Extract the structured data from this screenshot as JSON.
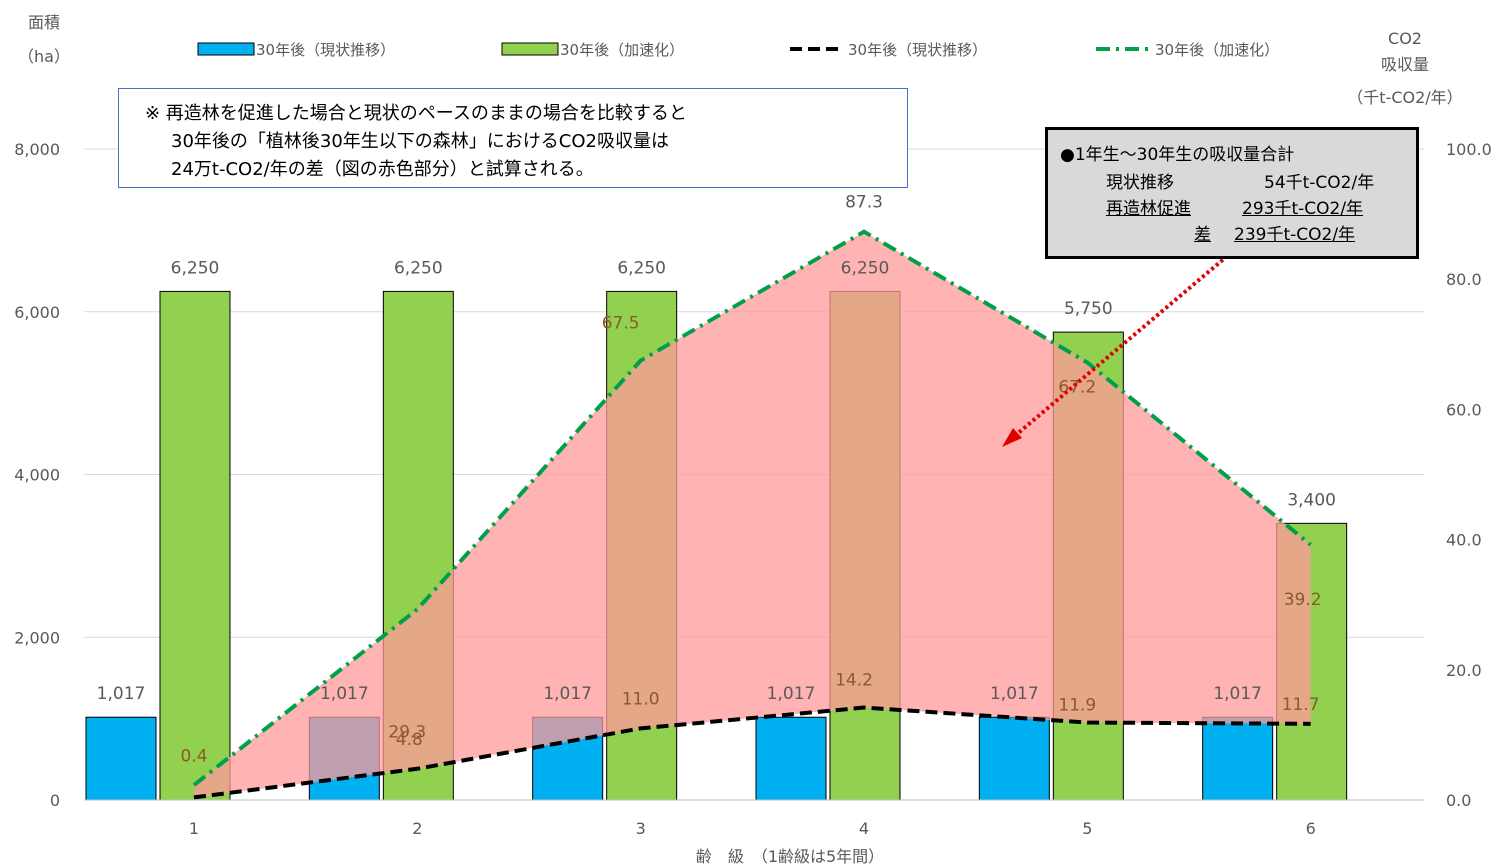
{
  "chart_data": {
    "type": "bar",
    "categories": [
      "1",
      "2",
      "3",
      "4",
      "5",
      "6"
    ],
    "series": [
      {
        "name": "30年後（現状推移）",
        "kind": "bar",
        "axis": "left",
        "color": "#00b0f0",
        "values": [
          1017,
          1017,
          1017,
          1017,
          1017,
          1017
        ],
        "labels": [
          "1,017",
          "1,017",
          "1,017",
          "1,017",
          "1,017",
          "1,017"
        ]
      },
      {
        "name": "30年後（加速化）",
        "kind": "bar",
        "axis": "left",
        "color": "#92d050",
        "values": [
          6250,
          6250,
          6250,
          6250,
          5750,
          3400
        ],
        "labels": [
          "6,250",
          "6,250",
          "6,250",
          "6,250",
          "5,750",
          "3,400"
        ]
      },
      {
        "name": "30年後（現状推移）",
        "kind": "line",
        "axis": "right",
        "color": "#000000",
        "values": [
          0.4,
          4.8,
          11.0,
          14.2,
          11.9,
          11.7
        ],
        "labels": [
          "0.4",
          "4.8",
          "11.0",
          "14.2",
          "11.9",
          "11.7"
        ]
      },
      {
        "name": "30年後（加速化）",
        "kind": "line",
        "axis": "right",
        "color": "#00a04a",
        "values": [
          2.3,
          29.3,
          67.5,
          87.3,
          67.2,
          39.2
        ],
        "labels": [
          "2.3",
          "29.3",
          "67.5",
          "87.3",
          "67.2",
          "39.2"
        ]
      }
    ],
    "y_left": {
      "title_line1": "面積",
      "title_line2": "（ha）",
      "min": 0,
      "max": 8000,
      "ticks": [
        "0",
        "2,000",
        "4,000",
        "6,000",
        "8,000"
      ],
      "tick_values": [
        0,
        2000,
        4000,
        6000,
        8000
      ]
    },
    "y_right": {
      "title_line1": "CO2",
      "title_line2": "吸収量",
      "title_line3": "（千t-CO2/年）",
      "min": 0,
      "max": 100,
      "ticks": [
        "0.0",
        "20.0",
        "40.0",
        "60.0",
        "80.0",
        "100.0"
      ],
      "tick_values": [
        0,
        20,
        40,
        60,
        80,
        100
      ]
    },
    "x_title": "齢　級　（1齢級は5年間）",
    "legend_position": "top",
    "grid": true,
    "difference_fill_color": "#ff9999"
  },
  "note": {
    "line1": "※ 再造林を促進した場合と現状のペースのままの場合を比較すると",
    "line2": "30年後の「植林後30年生以下の森林」におけるCO2吸収量は",
    "line3": "24万t-CO2/年の差（図の赤色部分）と試算される。"
  },
  "summary": {
    "title": "●1年生～30年生の吸収量合計",
    "row1_label": "現状推移",
    "row1_value": "54千t-CO2/年",
    "row2_label": "再造林促進",
    "row2_value": "293千t-CO2/年",
    "row3_label": "差",
    "row3_value": "239千t-CO2/年"
  },
  "colors": {
    "highlight_ellipse": "#e00000",
    "arrow": "#e00000"
  }
}
